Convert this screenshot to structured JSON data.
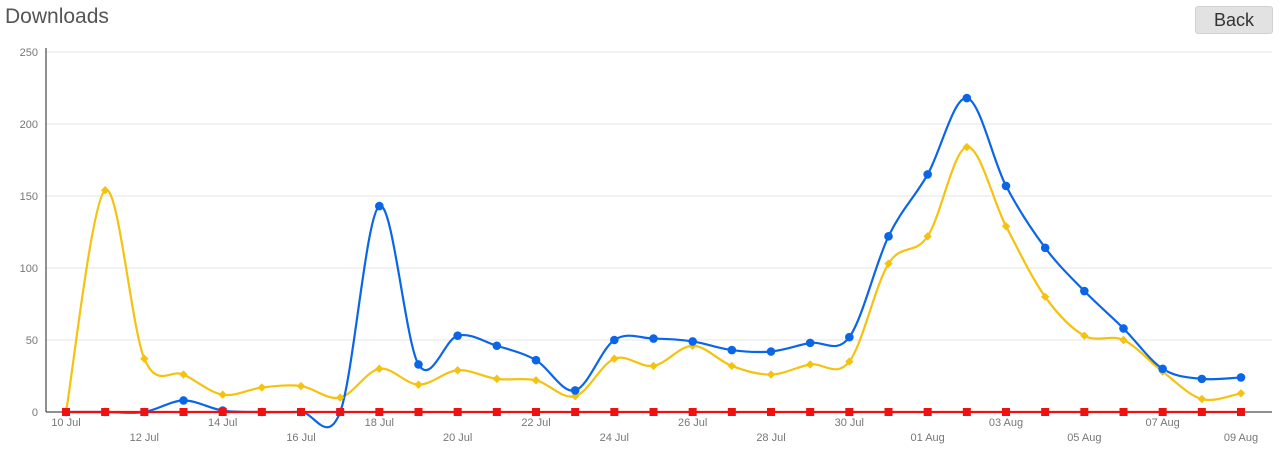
{
  "header": {
    "title": "Downloads",
    "back_label": "Back"
  },
  "colors": {
    "series": [
      "#0a66e6",
      "#f5c20f",
      "#ee1111"
    ],
    "grid": "#e6e6e6",
    "axis": "#222222"
  },
  "chart_data": {
    "type": "line",
    "title": "Downloads",
    "xlabel": "",
    "ylabel": "",
    "ylim": [
      0,
      250
    ],
    "yticks": [
      0,
      50,
      100,
      150,
      200,
      250
    ],
    "grid": true,
    "legend": "none",
    "categories": [
      "10 Jul",
      "11 Jul",
      "12 Jul",
      "13 Jul",
      "14 Jul",
      "15 Jul",
      "16 Jul",
      "17 Jul",
      "18 Jul",
      "19 Jul",
      "20 Jul",
      "21 Jul",
      "22 Jul",
      "23 Jul",
      "24 Jul",
      "25 Jul",
      "26 Jul",
      "27 Jul",
      "28 Jul",
      "29 Jul",
      "30 Jul",
      "31 Jul",
      "01 Aug",
      "02 Aug",
      "03 Aug",
      "04 Aug",
      "05 Aug",
      "06 Aug",
      "07 Aug",
      "08 Aug",
      "09 Aug"
    ],
    "xtick_labels": [
      "10 Jul",
      "12 Jul",
      "14 Jul",
      "16 Jul",
      "18 Jul",
      "20 Jul",
      "22 Jul",
      "24 Jul",
      "26 Jul",
      "28 Jul",
      "30 Jul",
      "01 Aug",
      "03 Aug",
      "05 Aug",
      "07 Aug",
      "09 Aug"
    ],
    "series": [
      {
        "marker": "circle",
        "values": [
          0,
          0,
          0,
          8,
          1,
          0,
          0,
          0,
          143,
          33,
          53,
          46,
          36,
          15,
          50,
          51,
          49,
          43,
          42,
          48,
          52,
          122,
          165,
          218,
          157,
          114,
          84,
          58,
          30,
          23,
          24
        ]
      },
      {
        "marker": "diamond",
        "values": [
          0,
          154,
          37,
          26,
          12,
          17,
          18,
          10,
          30,
          19,
          29,
          23,
          22,
          11,
          37,
          32,
          46,
          32,
          26,
          33,
          35,
          103,
          122,
          184,
          129,
          80,
          53,
          50,
          28,
          9,
          13
        ]
      },
      {
        "marker": "square",
        "values": [
          0,
          0,
          0,
          0,
          0,
          0,
          0,
          0,
          0,
          0,
          0,
          0,
          0,
          0,
          0,
          0,
          0,
          0,
          0,
          0,
          0,
          0,
          0,
          0,
          0,
          0,
          0,
          0,
          0,
          0,
          0
        ]
      }
    ]
  }
}
